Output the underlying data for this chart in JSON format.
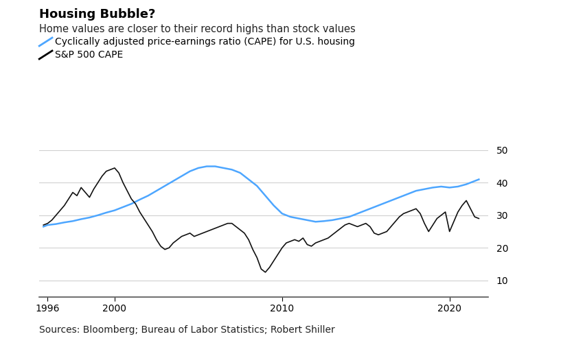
{
  "title": "Housing Bubble?",
  "subtitle": "Home values are closer to their record highs than stock values",
  "source": "Sources: Bloomberg; Bureau of Labor Statistics; Robert Shiller",
  "legend": [
    {
      "label": "Cyclically adjusted price-earnings ratio (CAPE) for U.S. housing",
      "color": "#4da6ff"
    },
    {
      "label": "S&P 500 CAPE",
      "color": "#000000"
    }
  ],
  "xlim": [
    1995.5,
    2022.3
  ],
  "ylim": [
    5,
    55
  ],
  "yticks": [
    10,
    20,
    30,
    40,
    50
  ],
  "xticks": [
    1996,
    2000,
    2010,
    2020
  ],
  "housing_cape": {
    "years": [
      1995.75,
      1996.0,
      1996.5,
      1997.0,
      1997.5,
      1998.0,
      1998.5,
      1999.0,
      1999.5,
      2000.0,
      2000.5,
      2001.0,
      2001.5,
      2002.0,
      2002.5,
      2003.0,
      2003.5,
      2004.0,
      2004.5,
      2005.0,
      2005.5,
      2006.0,
      2006.5,
      2007.0,
      2007.25,
      2007.5,
      2007.75,
      2008.0,
      2008.5,
      2009.0,
      2009.5,
      2010.0,
      2010.5,
      2011.0,
      2011.5,
      2012.0,
      2012.5,
      2013.0,
      2013.5,
      2014.0,
      2014.5,
      2015.0,
      2015.5,
      2016.0,
      2016.5,
      2017.0,
      2017.5,
      2018.0,
      2018.5,
      2019.0,
      2019.5,
      2020.0,
      2020.5,
      2021.0,
      2021.5,
      2021.75
    ],
    "values": [
      26.5,
      27.0,
      27.3,
      27.8,
      28.2,
      28.8,
      29.3,
      30.0,
      30.8,
      31.5,
      32.5,
      33.5,
      34.8,
      36.0,
      37.5,
      39.0,
      40.5,
      42.0,
      43.5,
      44.5,
      45.0,
      45.0,
      44.5,
      44.0,
      43.5,
      43.0,
      42.0,
      41.0,
      39.0,
      36.0,
      33.0,
      30.5,
      29.5,
      29.0,
      28.5,
      28.0,
      28.2,
      28.5,
      29.0,
      29.5,
      30.5,
      31.5,
      32.5,
      33.5,
      34.5,
      35.5,
      36.5,
      37.5,
      38.0,
      38.5,
      38.8,
      38.5,
      38.8,
      39.5,
      40.5,
      41.0
    ]
  },
  "sp500_cape": {
    "years": [
      1995.75,
      1996.0,
      1996.25,
      1996.5,
      1996.75,
      1997.0,
      1997.25,
      1997.5,
      1997.75,
      1998.0,
      1998.25,
      1998.5,
      1998.75,
      1999.0,
      1999.25,
      1999.5,
      1999.75,
      2000.0,
      2000.25,
      2000.5,
      2000.75,
      2001.0,
      2001.25,
      2001.5,
      2001.75,
      2002.0,
      2002.25,
      2002.5,
      2002.75,
      2003.0,
      2003.25,
      2003.5,
      2003.75,
      2004.0,
      2004.25,
      2004.5,
      2004.75,
      2005.0,
      2005.25,
      2005.5,
      2005.75,
      2006.0,
      2006.25,
      2006.5,
      2006.75,
      2007.0,
      2007.25,
      2007.5,
      2007.75,
      2008.0,
      2008.25,
      2008.5,
      2008.75,
      2009.0,
      2009.25,
      2009.5,
      2009.75,
      2010.0,
      2010.25,
      2010.5,
      2010.75,
      2011.0,
      2011.25,
      2011.5,
      2011.75,
      2012.0,
      2012.25,
      2012.5,
      2012.75,
      2013.0,
      2013.25,
      2013.5,
      2013.75,
      2014.0,
      2014.25,
      2014.5,
      2014.75,
      2015.0,
      2015.25,
      2015.5,
      2015.75,
      2016.0,
      2016.25,
      2016.5,
      2016.75,
      2017.0,
      2017.25,
      2017.5,
      2017.75,
      2018.0,
      2018.25,
      2018.5,
      2018.75,
      2019.0,
      2019.25,
      2019.5,
      2019.75,
      2020.0,
      2020.25,
      2020.5,
      2020.75,
      2021.0,
      2021.25,
      2021.5,
      2021.75
    ],
    "values": [
      27.0,
      27.5,
      28.5,
      30.0,
      31.5,
      33.0,
      35.0,
      37.0,
      36.0,
      38.5,
      37.0,
      35.5,
      38.0,
      40.0,
      42.0,
      43.5,
      44.0,
      44.5,
      43.0,
      40.0,
      37.5,
      35.0,
      33.5,
      31.0,
      29.0,
      27.0,
      25.0,
      22.5,
      20.5,
      19.5,
      20.0,
      21.5,
      22.5,
      23.5,
      24.0,
      24.5,
      23.5,
      24.0,
      24.5,
      25.0,
      25.5,
      26.0,
      26.5,
      27.0,
      27.5,
      27.5,
      26.5,
      25.5,
      24.5,
      22.5,
      19.5,
      17.0,
      13.5,
      12.5,
      14.0,
      16.0,
      18.0,
      20.0,
      21.5,
      22.0,
      22.5,
      22.0,
      23.0,
      21.0,
      20.5,
      21.5,
      22.0,
      22.5,
      23.0,
      24.0,
      25.0,
      26.0,
      27.0,
      27.5,
      27.0,
      26.5,
      27.0,
      27.5,
      26.5,
      24.5,
      24.0,
      24.5,
      25.0,
      26.5,
      28.0,
      29.5,
      30.5,
      31.0,
      31.5,
      32.0,
      30.5,
      27.5,
      25.0,
      27.0,
      29.0,
      30.0,
      31.0,
      25.0,
      28.0,
      31.0,
      33.0,
      34.5,
      32.0,
      29.5,
      29.0
    ]
  },
  "housing_color": "#4da6ff",
  "sp500_color": "#111111",
  "background_color": "#ffffff",
  "grid_color": "#d0d0d0",
  "title_color": "#000000",
  "subtitle_color": "#222222",
  "source_color": "#222222",
  "title_fontsize": 13,
  "subtitle_fontsize": 10.5,
  "legend_fontsize": 10,
  "tick_fontsize": 10,
  "source_fontsize": 10
}
